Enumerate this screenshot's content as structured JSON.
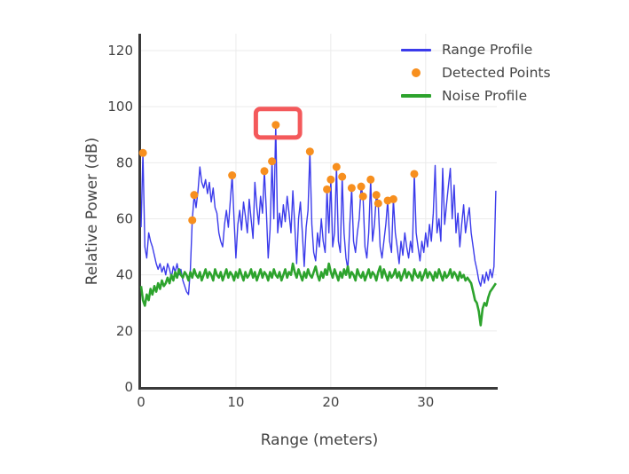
{
  "figure": {
    "background": "#ffffff"
  },
  "colors": {
    "axis": "#3a3a3a",
    "grid": "#ebebeb",
    "text": "#444444"
  },
  "chart_data": {
    "type": "line",
    "title": "",
    "xlabel": "Range (meters)",
    "ylabel": "Relative Power (dB)",
    "xlim": [
      0,
      37.5
    ],
    "ylim": [
      0,
      120
    ],
    "x_ticks": [
      0,
      10,
      20,
      30
    ],
    "y_ticks": [
      0,
      20,
      40,
      60,
      80,
      100,
      120
    ],
    "grid": true,
    "legend_position": "top-right",
    "x_start": 0,
    "x_step": 0.2,
    "series": [
      {
        "name": "Range Profile",
        "type": "line",
        "color": "#3b3beb",
        "width": 1.4,
        "values": [
          57,
          83.5,
          50,
          46,
          55,
          52,
          50,
          47,
          44,
          42,
          44,
          41,
          43,
          40,
          44,
          42,
          39,
          43,
          41,
          44,
          40,
          42,
          38,
          36,
          34,
          33,
          42,
          59.5,
          68.5,
          64,
          70,
          78.5,
          73,
          71,
          74,
          69,
          73,
          66,
          71,
          64,
          62,
          55,
          52,
          50,
          58,
          63,
          57,
          66,
          75.5,
          60,
          46,
          58,
          63,
          56,
          66,
          61,
          55,
          67,
          60,
          53,
          73,
          64,
          58,
          68,
          62,
          77,
          63,
          46,
          56,
          80.5,
          60,
          93.5,
          55,
          62,
          57,
          65,
          59,
          68,
          62,
          55,
          70,
          58,
          44,
          60,
          66,
          55,
          43,
          57,
          63,
          84,
          58,
          48,
          45,
          55,
          50,
          60,
          52,
          48,
          70.5,
          55,
          74,
          50,
          55,
          78.5,
          52,
          48,
          75,
          55,
          46,
          42,
          58,
          71,
          52,
          48,
          55,
          60,
          71.5,
          68,
          50,
          46,
          55,
          74,
          52,
          58,
          68.5,
          65.5,
          50,
          46,
          52,
          58,
          66.5,
          52,
          48,
          67,
          55,
          50,
          44,
          52,
          47,
          55,
          50,
          46,
          52,
          48,
          76,
          55,
          50,
          45,
          52,
          48,
          55,
          50,
          58,
          52,
          62,
          79,
          55,
          60,
          52,
          78,
          58,
          65,
          72,
          78,
          60,
          72,
          55,
          62,
          50,
          58,
          65,
          55,
          60,
          64,
          55,
          50,
          45,
          42,
          38,
          36,
          40,
          37,
          41,
          38,
          42,
          39,
          43,
          70
        ]
      },
      {
        "name": "Detected Points",
        "type": "scatter",
        "color": "#f78f1e",
        "marker_size": 9,
        "points": [
          [
            0.2,
            83.5
          ],
          [
            5.4,
            59.5
          ],
          [
            5.6,
            68.5
          ],
          [
            9.6,
            75.5
          ],
          [
            13.0,
            77
          ],
          [
            13.8,
            80.5
          ],
          [
            14.2,
            93.5
          ],
          [
            17.8,
            84
          ],
          [
            19.6,
            70.5
          ],
          [
            20.0,
            74
          ],
          [
            20.6,
            78.5
          ],
          [
            21.2,
            75
          ],
          [
            22.2,
            71
          ],
          [
            23.2,
            71.5
          ],
          [
            23.4,
            68
          ],
          [
            24.2,
            74
          ],
          [
            24.8,
            68.5
          ],
          [
            25.0,
            65.5
          ],
          [
            26.0,
            66.5
          ],
          [
            26.6,
            67
          ],
          [
            28.8,
            76
          ]
        ]
      },
      {
        "name": "Noise Profile",
        "type": "line",
        "color": "#2da32d",
        "width": 2.6,
        "values": [
          36,
          31,
          29,
          33,
          31,
          35,
          33,
          36,
          34,
          37,
          35,
          38,
          36,
          37,
          39,
          37,
          40,
          38,
          41,
          39,
          42,
          40,
          39,
          41,
          40,
          38,
          41,
          39,
          42,
          40,
          39,
          41,
          38,
          40,
          42,
          39,
          41,
          40,
          38,
          42,
          40,
          39,
          41,
          38,
          40,
          42,
          39,
          41,
          40,
          38,
          41,
          39,
          42,
          40,
          38,
          41,
          39,
          40,
          42,
          39,
          41,
          38,
          40,
          42,
          39,
          41,
          40,
          38,
          41,
          39,
          42,
          40,
          39,
          41,
          38,
          40,
          42,
          39,
          41,
          40,
          44,
          41,
          39,
          42,
          40,
          38,
          41,
          39,
          42,
          40,
          39,
          41,
          43,
          40,
          38,
          41,
          39,
          42,
          40,
          44,
          41,
          39,
          42,
          40,
          38,
          41,
          39,
          42,
          40,
          43,
          39,
          41,
          40,
          38,
          42,
          40,
          39,
          41,
          38,
          40,
          42,
          39,
          41,
          40,
          38,
          41,
          43,
          39,
          42,
          40,
          38,
          41,
          39,
          40,
          42,
          39,
          41,
          38,
          40,
          42,
          39,
          41,
          40,
          38,
          42,
          40,
          39,
          41,
          38,
          40,
          42,
          39,
          41,
          40,
          38,
          41,
          39,
          42,
          40,
          38,
          41,
          39,
          40,
          42,
          39,
          41,
          40,
          38,
          41,
          39,
          40,
          38,
          39,
          38,
          37,
          34,
          31,
          30,
          27,
          22,
          28,
          30,
          29,
          32,
          34,
          35,
          36,
          37
        ]
      }
    ],
    "annotation": {
      "type": "rect",
      "x0": 12.1,
      "x1": 16.75,
      "y0": 89,
      "y1": 99.2,
      "color": "#f4595b",
      "stroke_width": 5
    }
  }
}
